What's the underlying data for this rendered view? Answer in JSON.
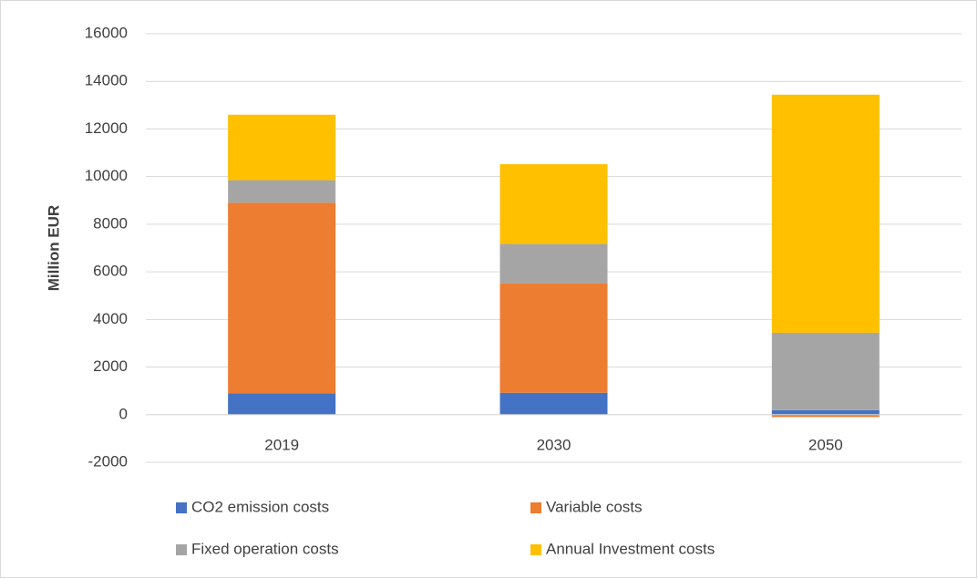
{
  "chart_data": {
    "type": "stacked_bar",
    "y_label": "Million EUR",
    "categories": [
      "2019",
      "2030",
      "2050"
    ],
    "series": [
      {
        "name": "CO2 emission costs",
        "color": "#4472c4",
        "values": [
          900,
          920,
          190
        ]
      },
      {
        "name": "Variable costs",
        "color": "#ed7d31",
        "values": [
          8000,
          4600,
          -100
        ]
      },
      {
        "name": "Fixed operation costs",
        "color": "#a5a5a5",
        "values": [
          950,
          1650,
          3250
        ]
      },
      {
        "name": "Annual Investment costs",
        "color": "#ffc000",
        "values": [
          2750,
          3350,
          10000
        ]
      }
    ],
    "ylim": [
      -2000,
      16000
    ],
    "yticks": [
      -2000,
      0,
      2000,
      4000,
      6000,
      8000,
      10000,
      12000,
      14000,
      16000
    ],
    "grid": true,
    "legend": "bottom"
  }
}
